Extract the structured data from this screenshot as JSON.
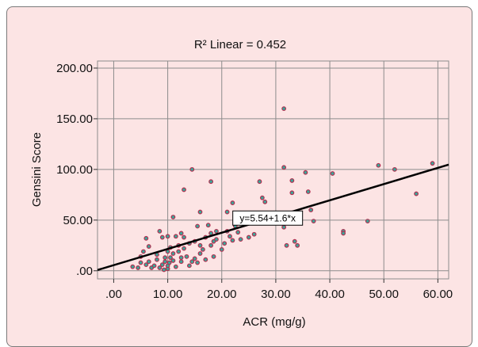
{
  "chart_data": {
    "type": "scatter",
    "title": "R² Linear = 0.452",
    "xlabel": "ACR (mg/g)",
    "ylabel": "Gensini Score",
    "xlim": [
      -3,
      62
    ],
    "ylim": [
      -8,
      207
    ],
    "x_ticks": [
      0,
      10,
      20,
      30,
      40,
      50,
      60
    ],
    "x_tick_labels": [
      ".00",
      "10.00",
      "20.00",
      "30.00",
      "40.00",
      "50.00",
      "60.00"
    ],
    "y_ticks": [
      0,
      50,
      100,
      150,
      200
    ],
    "y_tick_labels": [
      ".00",
      "50.00",
      "100.00",
      "150.00",
      "200.00"
    ],
    "grid": true,
    "fit_line": {
      "intercept": 5.54,
      "slope": 1.6,
      "label": "y=5.54+1.6*x",
      "label_at": [
        28.5,
        52
      ]
    },
    "colors": {
      "point_fill": "#3aa79a",
      "point_stroke": "#b03050",
      "line": "#000000",
      "grid": "#8c8c8c",
      "background": "#fce4e4"
    },
    "points": [
      [
        3.5,
        4
      ],
      [
        4.5,
        3
      ],
      [
        5,
        8
      ],
      [
        5,
        14
      ],
      [
        5.5,
        19
      ],
      [
        6,
        32
      ],
      [
        6,
        6
      ],
      [
        6.5,
        9
      ],
      [
        6.5,
        24
      ],
      [
        7,
        3
      ],
      [
        7.5,
        5
      ],
      [
        8,
        11
      ],
      [
        8,
        16
      ],
      [
        8.5,
        39
      ],
      [
        8.5,
        3
      ],
      [
        9,
        33
      ],
      [
        9,
        6
      ],
      [
        9.3,
        1
      ],
      [
        9.5,
        9
      ],
      [
        9.5,
        13
      ],
      [
        10,
        2
      ],
      [
        10,
        5
      ],
      [
        10,
        19
      ],
      [
        10,
        34
      ],
      [
        10.3,
        8
      ],
      [
        10.5,
        23
      ],
      [
        10.5,
        13
      ],
      [
        11,
        53
      ],
      [
        11,
        10
      ],
      [
        11,
        17
      ],
      [
        11.5,
        34
      ],
      [
        11.5,
        4
      ],
      [
        12,
        19
      ],
      [
        12,
        25
      ],
      [
        12.5,
        13
      ],
      [
        12.5,
        37
      ],
      [
        12.5,
        9
      ],
      [
        13,
        80
      ],
      [
        13,
        22
      ],
      [
        13,
        33
      ],
      [
        13.5,
        14
      ],
      [
        14,
        27
      ],
      [
        14,
        5
      ],
      [
        14.5,
        100
      ],
      [
        14.5,
        9
      ],
      [
        15,
        29
      ],
      [
        15,
        12
      ],
      [
        15.5,
        8
      ],
      [
        15.5,
        44
      ],
      [
        16,
        58
      ],
      [
        16,
        25
      ],
      [
        16,
        17
      ],
      [
        16.5,
        21
      ],
      [
        17,
        33
      ],
      [
        17,
        11
      ],
      [
        17.5,
        45
      ],
      [
        18,
        88
      ],
      [
        18,
        37
      ],
      [
        18,
        25
      ],
      [
        18.5,
        29
      ],
      [
        18.5,
        14
      ],
      [
        19,
        39
      ],
      [
        19,
        31
      ],
      [
        20,
        21
      ],
      [
        20.5,
        27
      ],
      [
        21,
        58
      ],
      [
        21,
        39
      ],
      [
        21.5,
        34
      ],
      [
        22,
        67
      ],
      [
        22,
        30
      ],
      [
        22.5,
        44
      ],
      [
        23,
        54
      ],
      [
        23,
        38
      ],
      [
        23.5,
        31
      ],
      [
        25,
        33
      ],
      [
        26,
        36
      ],
      [
        27,
        88
      ],
      [
        27.5,
        72
      ],
      [
        28,
        68
      ],
      [
        28,
        56
      ],
      [
        31.5,
        160
      ],
      [
        31.5,
        102
      ],
      [
        31.5,
        43
      ],
      [
        32,
        25
      ],
      [
        33,
        77
      ],
      [
        33,
        89
      ],
      [
        33.5,
        29
      ],
      [
        34,
        25
      ],
      [
        35.5,
        97
      ],
      [
        36,
        78
      ],
      [
        36.5,
        60
      ],
      [
        37,
        49
      ],
      [
        40.5,
        96
      ],
      [
        42.5,
        39
      ],
      [
        42.5,
        37
      ],
      [
        47,
        49
      ],
      [
        49,
        104
      ],
      [
        52,
        100
      ],
      [
        56,
        76
      ],
      [
        59,
        106
      ]
    ]
  }
}
